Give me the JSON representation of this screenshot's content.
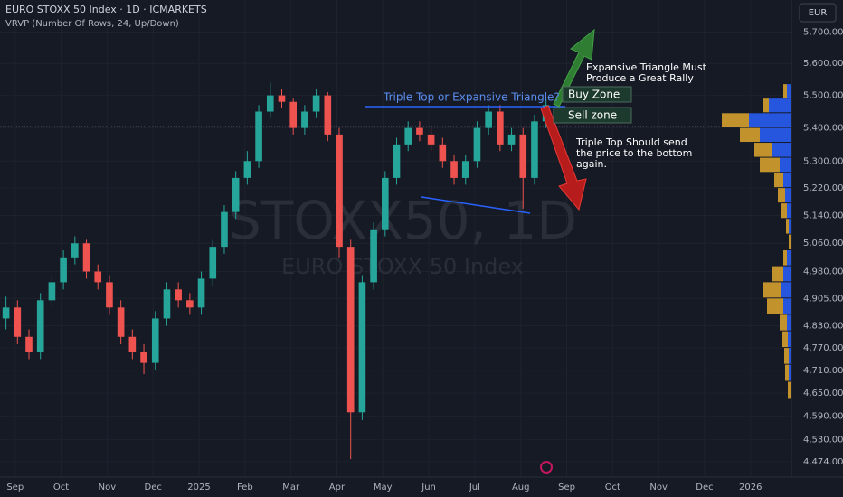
{
  "chart_data": {
    "type": "candlestick",
    "title": "EURO STOXX 50 Index · 1D · ICMARKETS",
    "subtitle": "VRVP (Number Of Rows, 24, Up/Down)",
    "watermark": "STOXX50, 1D",
    "watermark_subtitle": "EURO STOXX 50 Index",
    "currency": "EUR",
    "log_scale": true,
    "up_color": "#26a69a",
    "down_color": "#ef5350",
    "xlim": [
      -0.33,
      16.89
    ],
    "xticks": [
      {
        "value": 0,
        "label": "Sep"
      },
      {
        "value": 1,
        "label": "Oct"
      },
      {
        "value": 2,
        "label": "Nov"
      },
      {
        "value": 3,
        "label": "Dec"
      },
      {
        "value": 4,
        "label": "2025"
      },
      {
        "value": 5,
        "label": "Feb"
      },
      {
        "value": 6,
        "label": "Mar"
      },
      {
        "value": 7,
        "label": "Apr"
      },
      {
        "value": 8,
        "label": "May"
      },
      {
        "value": 9,
        "label": "Jun"
      },
      {
        "value": 10,
        "label": "Jul"
      },
      {
        "value": 11,
        "label": "Aug"
      },
      {
        "value": 12,
        "label": "Sep"
      },
      {
        "value": 13,
        "label": "Oct"
      },
      {
        "value": 14,
        "label": "Nov"
      },
      {
        "value": 15,
        "label": "Dec"
      },
      {
        "value": 16,
        "label": "2026"
      }
    ],
    "ylim": [
      4435,
      5804
    ],
    "yticks": [
      {
        "value": 5700,
        "label": "5,700.00"
      },
      {
        "value": 5600,
        "label": "5,600.00"
      },
      {
        "value": 5500,
        "label": "5,500.00"
      },
      {
        "value": 5400,
        "label": "5,400.00"
      },
      {
        "value": 5300,
        "label": "5,300.00"
      },
      {
        "value": 5220,
        "label": "5,220.00"
      },
      {
        "value": 5140,
        "label": "5,140.00"
      },
      {
        "value": 5060,
        "label": "5,060.00"
      },
      {
        "value": 4980,
        "label": "4,980.00"
      },
      {
        "value": 4905,
        "label": "4,905.00"
      },
      {
        "value": 4830,
        "label": "4,830.00"
      },
      {
        "value": 4770,
        "label": "4,770.00"
      },
      {
        "value": 4710,
        "label": "4,710.00"
      },
      {
        "value": 4650,
        "label": "4,650.00"
      },
      {
        "value": 4590,
        "label": "4,590.00"
      },
      {
        "value": 4530,
        "label": "4,530.00"
      },
      {
        "value": 4474,
        "label": "4,474.00"
      }
    ],
    "candles": {
      "x": [
        -0.2,
        0.05,
        0.3,
        0.55,
        0.8,
        1.05,
        1.3,
        1.55,
        1.8,
        2.05,
        2.3,
        2.55,
        2.8,
        3.05,
        3.3,
        3.55,
        3.8,
        4.05,
        4.3,
        4.55,
        4.8,
        5.05,
        5.3,
        5.55,
        5.8,
        6.05,
        6.3,
        6.55,
        6.8,
        7.05,
        7.3,
        7.55,
        7.8,
        8.05,
        8.3,
        8.55,
        8.8,
        9.05,
        9.3,
        9.55,
        9.8,
        10.05,
        10.3,
        10.55,
        10.8,
        11.05,
        11.3,
        11.55
      ],
      "open": [
        4850,
        4880,
        4800,
        4760,
        4900,
        4950,
        5020,
        5060,
        4980,
        4950,
        4880,
        4800,
        4760,
        4730,
        4850,
        4930,
        4900,
        4880,
        4960,
        5050,
        5150,
        5250,
        5300,
        5450,
        5500,
        5480,
        5400,
        5450,
        5500,
        5380,
        5050,
        4600,
        4950,
        5100,
        5250,
        5350,
        5400,
        5380,
        5350,
        5300,
        5250,
        5300,
        5400,
        5450,
        5350,
        5380,
        5250,
        5420
      ],
      "high": [
        4910,
        4900,
        4820,
        4920,
        4970,
        5040,
        5080,
        5070,
        5000,
        4970,
        4900,
        4820,
        4780,
        4870,
        4950,
        4950,
        4920,
        4980,
        5070,
        5170,
        5270,
        5330,
        5470,
        5540,
        5520,
        5490,
        5470,
        5520,
        5510,
        5400,
        5070,
        4970,
        5120,
        5270,
        5370,
        5420,
        5420,
        5400,
        5370,
        5320,
        5320,
        5420,
        5470,
        5470,
        5400,
        5400,
        5440,
        5490
      ],
      "low": [
        4820,
        4780,
        4740,
        4740,
        4880,
        4930,
        5000,
        4960,
        4930,
        4860,
        4780,
        4740,
        4700,
        4710,
        4830,
        4880,
        4860,
        4860,
        4940,
        5030,
        5130,
        5230,
        5280,
        5430,
        5460,
        5380,
        5380,
        5430,
        5360,
        5020,
        4480,
        4580,
        4930,
        5080,
        5230,
        5330,
        5360,
        5330,
        5280,
        5230,
        5230,
        5280,
        5380,
        5330,
        5330,
        5160,
        5230,
        5400
      ],
      "close": [
        4880,
        4800,
        4760,
        4900,
        4950,
        5020,
        5060,
        4980,
        4950,
        4880,
        4800,
        4760,
        4730,
        4850,
        4930,
        4900,
        4880,
        4960,
        5050,
        5150,
        5250,
        5300,
        5450,
        5500,
        5480,
        5400,
        5450,
        5500,
        5380,
        5050,
        4600,
        4950,
        5100,
        5250,
        5350,
        5400,
        5380,
        5350,
        5300,
        5250,
        5300,
        5400,
        5450,
        5350,
        5380,
        5250,
        5420,
        5470
      ]
    },
    "volume_profile": {
      "up_color": "#2962ff",
      "down_color": "#e0a82e",
      "row_size": 45,
      "rows": [
        4500,
        4545,
        4590,
        4635,
        4680,
        4725,
        4770,
        4815,
        4860,
        4905,
        4950,
        4995,
        5040,
        5085,
        5130,
        5175,
        5220,
        5265,
        5310,
        5355,
        5400,
        5445,
        5490,
        5535
      ],
      "up": [
        2,
        3,
        4,
        6,
        8,
        8,
        9,
        10,
        14,
        16,
        14,
        10,
        6,
        8,
        10,
        12,
        14,
        18,
        26,
        40,
        52,
        30,
        10,
        4
      ],
      "down": [
        1,
        1,
        2,
        3,
        4,
        5,
        6,
        8,
        18,
        20,
        12,
        4,
        2,
        3,
        6,
        8,
        10,
        22,
        20,
        22,
        30,
        6,
        4,
        2
      ]
    },
    "annotations": {
      "pattern_question": "Triple Top or Expansive Triangle?",
      "buy_zone": "Buy Zone",
      "sell_zone": "Sell zone",
      "bull_note": [
        "Expansive Triangle Must",
        "Produce a Great Rally"
      ],
      "bear_note": [
        "Triple Top Should send",
        "the price to the bottom",
        "again."
      ]
    }
  }
}
